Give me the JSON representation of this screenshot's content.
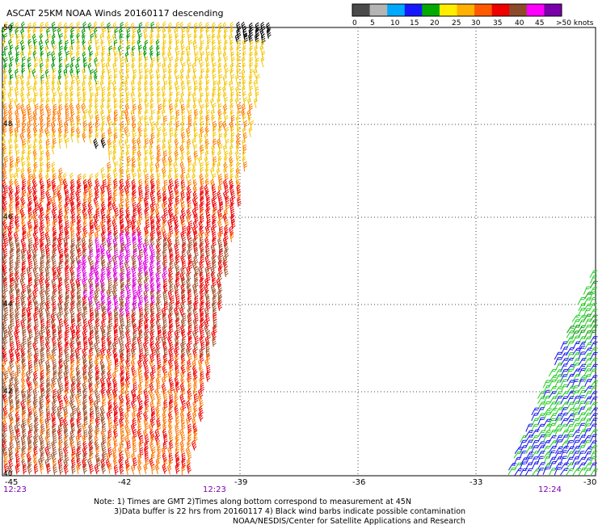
{
  "title": "ASCAT 25KM NOAA Winds 20160117 descending",
  "colorbar": {
    "labels": [
      "0",
      "5",
      "10",
      "15",
      "20",
      "25",
      "30",
      "35",
      "40",
      "45",
      ">50 knots"
    ],
    "colors": [
      "#4a4a4a",
      "#b4b4b4",
      "#00a8ff",
      "#1818ff",
      "#00aa00",
      "#ffee00",
      "#ffb000",
      "#ff5a00",
      "#ee0000",
      "#8b4a2a",
      "#ff00ff",
      "#7a00aa"
    ]
  },
  "map": {
    "lat_labels": [
      "50",
      "48",
      "46",
      "44",
      "42",
      "40"
    ],
    "lon_labels": [
      "-45",
      "-42",
      "-39",
      "-36",
      "-33",
      "-30"
    ],
    "time_labels": [
      "12:23",
      "12:23",
      "12:24"
    ],
    "grid": "dotted",
    "wind_colors": {
      "purple": "#dd00dd",
      "brown": "#a0522d",
      "red": "#ee0000",
      "orange": "#ff7700",
      "yellow": "#f5c400",
      "green": "#009900",
      "light_green": "#22cc22",
      "blue": "#1515ee",
      "black": "#000000"
    }
  },
  "notes": {
    "line1": "Note: 1) Times are GMT 2)Times along bottom correspond to measurement at 45N",
    "line2": "3)Data buffer is 22 hrs from 20160117 4) Black wind barbs indicate possible contamination",
    "line3": "NOAA/NESDIS/Center for Satellite Applications and Research"
  }
}
